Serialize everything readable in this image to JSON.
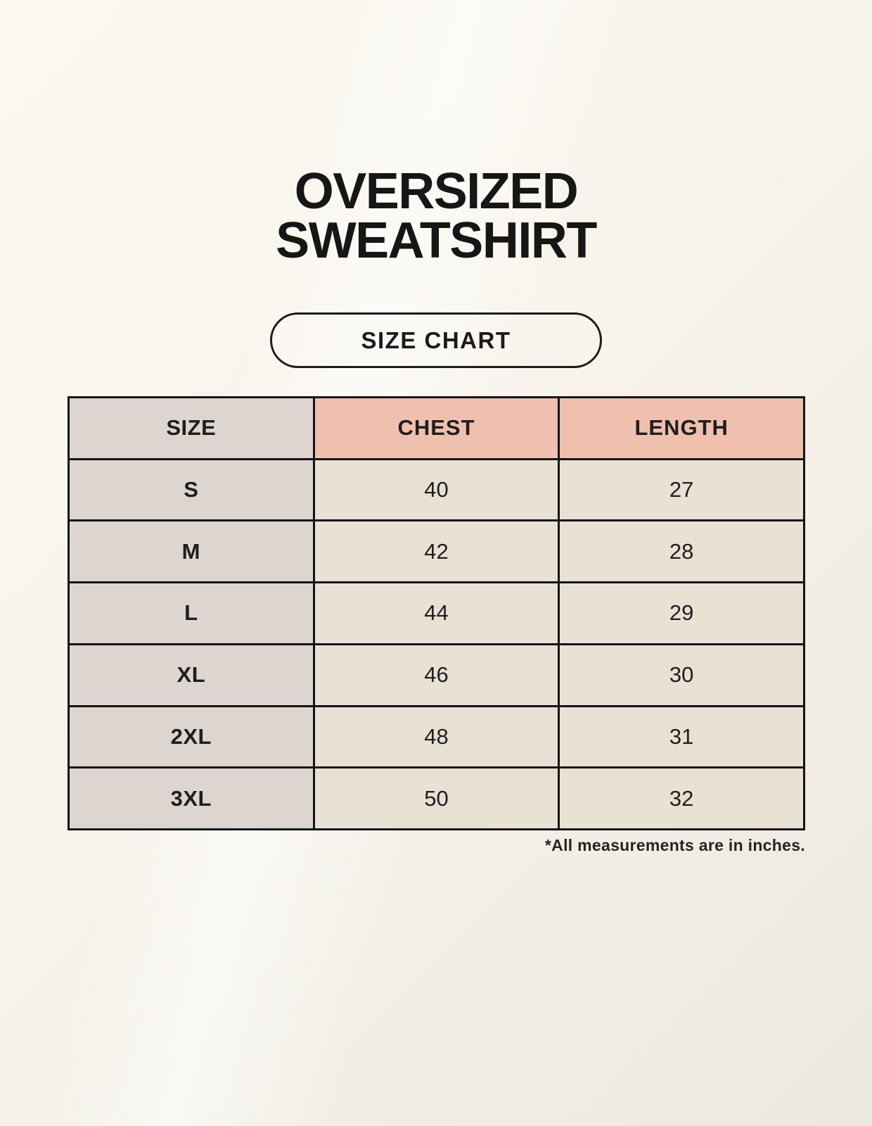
{
  "page": {
    "title_line1": "OVERSIZED",
    "title_line2": "SWEATSHIRT",
    "button_label": "SIZE CHART",
    "footnote": "*All measurements are in inches."
  },
  "colors": {
    "background_cream": "#f8f4ec",
    "header_pink": "#f0c0af",
    "size_column_gray": "#ddd5d0",
    "cell_cream": "#e8e1d4",
    "border_ink": "#141414",
    "text_ink": "#1d1d1d"
  },
  "table": {
    "headers": [
      "SIZE",
      "CHEST",
      "LENGTH"
    ],
    "rows": [
      {
        "size": "S",
        "chest": "40",
        "length": "27"
      },
      {
        "size": "M",
        "chest": "42",
        "length": "28"
      },
      {
        "size": "L",
        "chest": "44",
        "length": "29"
      },
      {
        "size": "XL",
        "chest": "46",
        "length": "30"
      },
      {
        "size": "2XL",
        "chest": "48",
        "length": "31"
      },
      {
        "size": "3XL",
        "chest": "50",
        "length": "32"
      }
    ]
  },
  "chart_data": {
    "type": "table",
    "title": "OVERSIZED SWEATSHIRT",
    "subtitle": "SIZE CHART",
    "columns": [
      "SIZE",
      "CHEST",
      "LENGTH"
    ],
    "rows": [
      [
        "S",
        40,
        27
      ],
      [
        "M",
        42,
        28
      ],
      [
        "L",
        44,
        29
      ],
      [
        "XL",
        46,
        30
      ],
      [
        "2XL",
        48,
        31
      ],
      [
        "3XL",
        50,
        32
      ]
    ],
    "units": "inches"
  }
}
